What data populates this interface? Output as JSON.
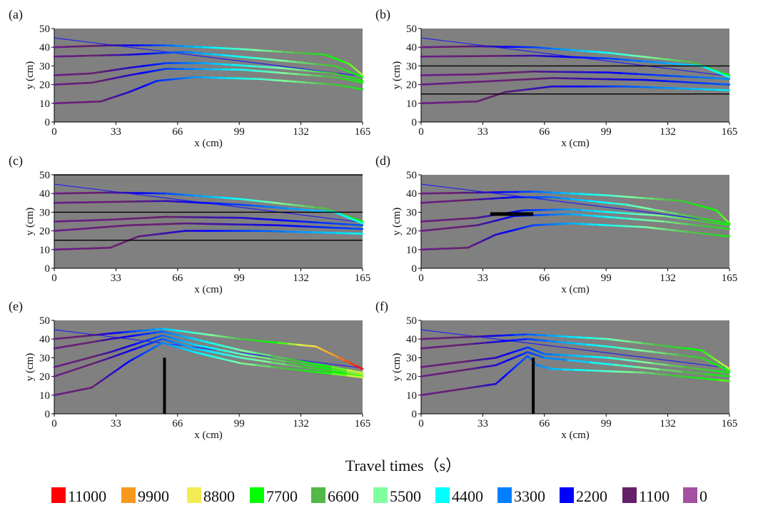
{
  "chart_data": {
    "type": "line",
    "xlabel": "x (cm)",
    "ylabel": "y (cm)",
    "xlim": [
      0,
      165
    ],
    "ylim": [
      0,
      50
    ],
    "xticks": [
      0,
      33,
      66,
      99,
      132,
      165
    ],
    "yticks": [
      0,
      10,
      20,
      30,
      40,
      50
    ],
    "legend": {
      "title": "Travel times（s）",
      "placement": "bottom",
      "entries": [
        {
          "label": "11000",
          "color": "#ff0000"
        },
        {
          "label": "9900",
          "color": "#f7991f"
        },
        {
          "label": "8800",
          "color": "#f2ec52"
        },
        {
          "label": "7700",
          "color": "#00ff00"
        },
        {
          "label": "6600",
          "color": "#52b848"
        },
        {
          "label": "5500",
          "color": "#80ffa0"
        },
        {
          "label": "4400",
          "color": "#00ffff"
        },
        {
          "label": "3300",
          "color": "#0080ff"
        },
        {
          "label": "2200",
          "color": "#0000ff"
        },
        {
          "label": "1100",
          "color": "#66206a"
        },
        {
          "label": "0",
          "color": "#a351a0"
        }
      ]
    },
    "panels": [
      {
        "label": "(a)",
        "barriers": [],
        "reference_line": [
          [
            0,
            45
          ],
          [
            165,
            24.5
          ]
        ],
        "lines": [
          {
            "end_time": 8500,
            "points": [
              [
                0,
                40
              ],
              [
                30,
                41
              ],
              [
                60,
                41
              ],
              [
                100,
                39
              ],
              [
                145,
                36
              ],
              [
                158,
                31
              ],
              [
                165,
                25
              ]
            ]
          },
          {
            "end_time": 7600,
            "points": [
              [
                0,
                35
              ],
              [
                40,
                36
              ],
              [
                70,
                37.5
              ],
              [
                110,
                34
              ],
              [
                150,
                30
              ],
              [
                165,
                24
              ]
            ]
          },
          {
            "end_time": 7400,
            "points": [
              [
                0,
                25
              ],
              [
                20,
                26
              ],
              [
                40,
                29
              ],
              [
                60,
                31.5
              ],
              [
                80,
                31.5
              ],
              [
                120,
                29
              ],
              [
                150,
                26
              ],
              [
                165,
                22
              ]
            ]
          },
          {
            "end_time": 7400,
            "points": [
              [
                0,
                20
              ],
              [
                20,
                21
              ],
              [
                40,
                25
              ],
              [
                60,
                28.5
              ],
              [
                100,
                28
              ],
              [
                150,
                24
              ],
              [
                165,
                21
              ]
            ]
          },
          {
            "end_time": 7400,
            "points": [
              [
                0,
                10
              ],
              [
                25,
                11
              ],
              [
                40,
                16
              ],
              [
                55,
                22
              ],
              [
                75,
                24
              ],
              [
                110,
                23
              ],
              [
                150,
                20
              ],
              [
                165,
                17.5
              ]
            ]
          }
        ]
      },
      {
        "label": "(b)",
        "barriers": [
          {
            "type": "h",
            "y": 30,
            "x0": 0,
            "x1": 165
          },
          {
            "type": "h",
            "y": 15,
            "x0": 0,
            "x1": 165
          }
        ],
        "reference_line": [
          [
            0,
            45
          ],
          [
            165,
            24.5
          ]
        ],
        "lines": [
          {
            "end_time": 7600,
            "points": [
              [
                0,
                40
              ],
              [
                30,
                40.5
              ],
              [
                60,
                40
              ],
              [
                100,
                37
              ],
              [
                145,
                32
              ],
              [
                165,
                25
              ]
            ]
          },
          {
            "end_time": 4600,
            "points": [
              [
                0,
                35
              ],
              [
                60,
                35.5
              ],
              [
                100,
                34
              ],
              [
                150,
                30
              ],
              [
                165,
                24
              ]
            ]
          },
          {
            "end_time": 3500,
            "points": [
              [
                0,
                25
              ],
              [
                30,
                25.5
              ],
              [
                60,
                27
              ],
              [
                100,
                26.5
              ],
              [
                165,
                23
              ]
            ]
          },
          {
            "end_time": 3000,
            "points": [
              [
                0,
                20
              ],
              [
                40,
                22
              ],
              [
                70,
                23.5
              ],
              [
                120,
                22.5
              ],
              [
                165,
                20
              ]
            ]
          },
          {
            "end_time": 4300,
            "points": [
              [
                0,
                10
              ],
              [
                30,
                11
              ],
              [
                45,
                16
              ],
              [
                70,
                19
              ],
              [
                110,
                19
              ],
              [
                165,
                17
              ]
            ]
          }
        ]
      },
      {
        "label": "(c)",
        "barriers": [
          {
            "type": "h",
            "y": 30,
            "x0": 0,
            "x1": 165
          },
          {
            "type": "h",
            "y": 15,
            "x0": 0,
            "x1": 165
          },
          {
            "type": "h",
            "y": 50,
            "x0": 0,
            "x1": 165
          }
        ],
        "reference_line": [
          [
            0,
            45
          ],
          [
            165,
            24.5
          ]
        ],
        "lines": [
          {
            "end_time": 7600,
            "points": [
              [
                0,
                40
              ],
              [
                30,
                40.5
              ],
              [
                60,
                40
              ],
              [
                100,
                37
              ],
              [
                145,
                32
              ],
              [
                165,
                25
              ]
            ]
          },
          {
            "end_time": 4600,
            "points": [
              [
                0,
                35
              ],
              [
                60,
                36
              ],
              [
                100,
                34
              ],
              [
                150,
                30
              ],
              [
                165,
                24
              ]
            ]
          },
          {
            "end_time": 3000,
            "points": [
              [
                0,
                25
              ],
              [
                30,
                26
              ],
              [
                60,
                27.5
              ],
              [
                100,
                27
              ],
              [
                165,
                23
              ]
            ]
          },
          {
            "end_time": 2900,
            "points": [
              [
                0,
                20
              ],
              [
                40,
                23
              ],
              [
                70,
                24
              ],
              [
                120,
                23
              ],
              [
                165,
                21
              ]
            ]
          },
          {
            "end_time": 4400,
            "points": [
              [
                0,
                10
              ],
              [
                30,
                11
              ],
              [
                45,
                17
              ],
              [
                70,
                20
              ],
              [
                110,
                20
              ],
              [
                165,
                18.5
              ]
            ]
          }
        ]
      },
      {
        "label": "(d)",
        "barriers": [
          {
            "type": "h",
            "y": 29,
            "x0": 37,
            "x1": 60
          }
        ],
        "reference_line": [
          [
            0,
            45
          ],
          [
            165,
            24.5
          ]
        ],
        "lines": [
          {
            "end_time": 8300,
            "points": [
              [
                0,
                40
              ],
              [
                60,
                41
              ],
              [
                100,
                39
              ],
              [
                140,
                36
              ],
              [
                158,
                31
              ],
              [
                165,
                24
              ]
            ]
          },
          {
            "end_time": 7500,
            "points": [
              [
                0,
                35
              ],
              [
                50,
                38
              ],
              [
                70,
                38
              ],
              [
                110,
                34
              ],
              [
                165,
                24
              ]
            ]
          },
          {
            "end_time": 7300,
            "points": [
              [
                0,
                25
              ],
              [
                30,
                27
              ],
              [
                55,
                31
              ],
              [
                80,
                31.5
              ],
              [
                130,
                28
              ],
              [
                165,
                23
              ]
            ]
          },
          {
            "end_time": 7300,
            "points": [
              [
                0,
                20
              ],
              [
                30,
                23
              ],
              [
                50,
                28
              ],
              [
                80,
                29
              ],
              [
                130,
                25
              ],
              [
                165,
                21
              ]
            ]
          },
          {
            "end_time": 7400,
            "points": [
              [
                0,
                10
              ],
              [
                25,
                11
              ],
              [
                40,
                18
              ],
              [
                60,
                23
              ],
              [
                80,
                24
              ],
              [
                120,
                22
              ],
              [
                165,
                17
              ]
            ]
          }
        ]
      },
      {
        "label": "(e)",
        "barriers": [
          {
            "type": "v",
            "x": 59,
            "y0": 0,
            "y1": 30
          }
        ],
        "reference_line": [
          [
            0,
            45
          ],
          [
            165,
            24.5
          ]
        ],
        "lines": [
          {
            "end_time": 11000,
            "points": [
              [
                0,
                40
              ],
              [
                30,
                43
              ],
              [
                58,
                45.5
              ],
              [
                70,
                44
              ],
              [
                100,
                40
              ],
              [
                140,
                36
              ],
              [
                165,
                24
              ]
            ]
          },
          {
            "end_time": 8800,
            "points": [
              [
                0,
                35
              ],
              [
                30,
                40
              ],
              [
                58,
                44
              ],
              [
                75,
                40
              ],
              [
                100,
                34
              ],
              [
                165,
                22
              ]
            ]
          },
          {
            "end_time": 8600,
            "points": [
              [
                0,
                25
              ],
              [
                30,
                33
              ],
              [
                58,
                42
              ],
              [
                75,
                37
              ],
              [
                100,
                32
              ],
              [
                165,
                21
              ]
            ]
          },
          {
            "end_time": 8200,
            "points": [
              [
                0,
                20
              ],
              [
                30,
                30
              ],
              [
                58,
                40
              ],
              [
                75,
                35
              ],
              [
                100,
                30
              ],
              [
                165,
                20
              ]
            ]
          },
          {
            "end_time": 8800,
            "points": [
              [
                0,
                10
              ],
              [
                20,
                14
              ],
              [
                40,
                28
              ],
              [
                58,
                38
              ],
              [
                75,
                33
              ],
              [
                100,
                27
              ],
              [
                165,
                19.5
              ]
            ]
          }
        ]
      },
      {
        "label": "(f)",
        "barriers": [
          {
            "type": "v",
            "x": 60,
            "y0": 0,
            "y1": 30
          }
        ],
        "reference_line": [
          [
            0,
            45
          ],
          [
            165,
            24.5
          ]
        ],
        "lines": [
          {
            "end_time": 8700,
            "points": [
              [
                0,
                40
              ],
              [
                57,
                42.5
              ],
              [
                100,
                40
              ],
              [
                150,
                34
              ],
              [
                165,
                24
              ]
            ]
          },
          {
            "end_time": 7800,
            "points": [
              [
                0,
                35
              ],
              [
                57,
                40
              ],
              [
                100,
                36
              ],
              [
                150,
                30
              ],
              [
                165,
                23
              ]
            ]
          },
          {
            "end_time": 7600,
            "points": [
              [
                0,
                25
              ],
              [
                40,
                30
              ],
              [
                57,
                35.5
              ],
              [
                66,
                32
              ],
              [
                100,
                30
              ],
              [
                165,
                22
              ]
            ]
          },
          {
            "end_time": 7600,
            "points": [
              [
                0,
                20
              ],
              [
                40,
                26
              ],
              [
                57,
                33
              ],
              [
                66,
                30
              ],
              [
                165,
                20
              ]
            ]
          },
          {
            "end_time": 8200,
            "points": [
              [
                0,
                10
              ],
              [
                40,
                16
              ],
              [
                57,
                31
              ],
              [
                62,
                26
              ],
              [
                70,
                24
              ],
              [
                120,
                22
              ],
              [
                165,
                17.5
              ]
            ]
          }
        ]
      }
    ]
  }
}
